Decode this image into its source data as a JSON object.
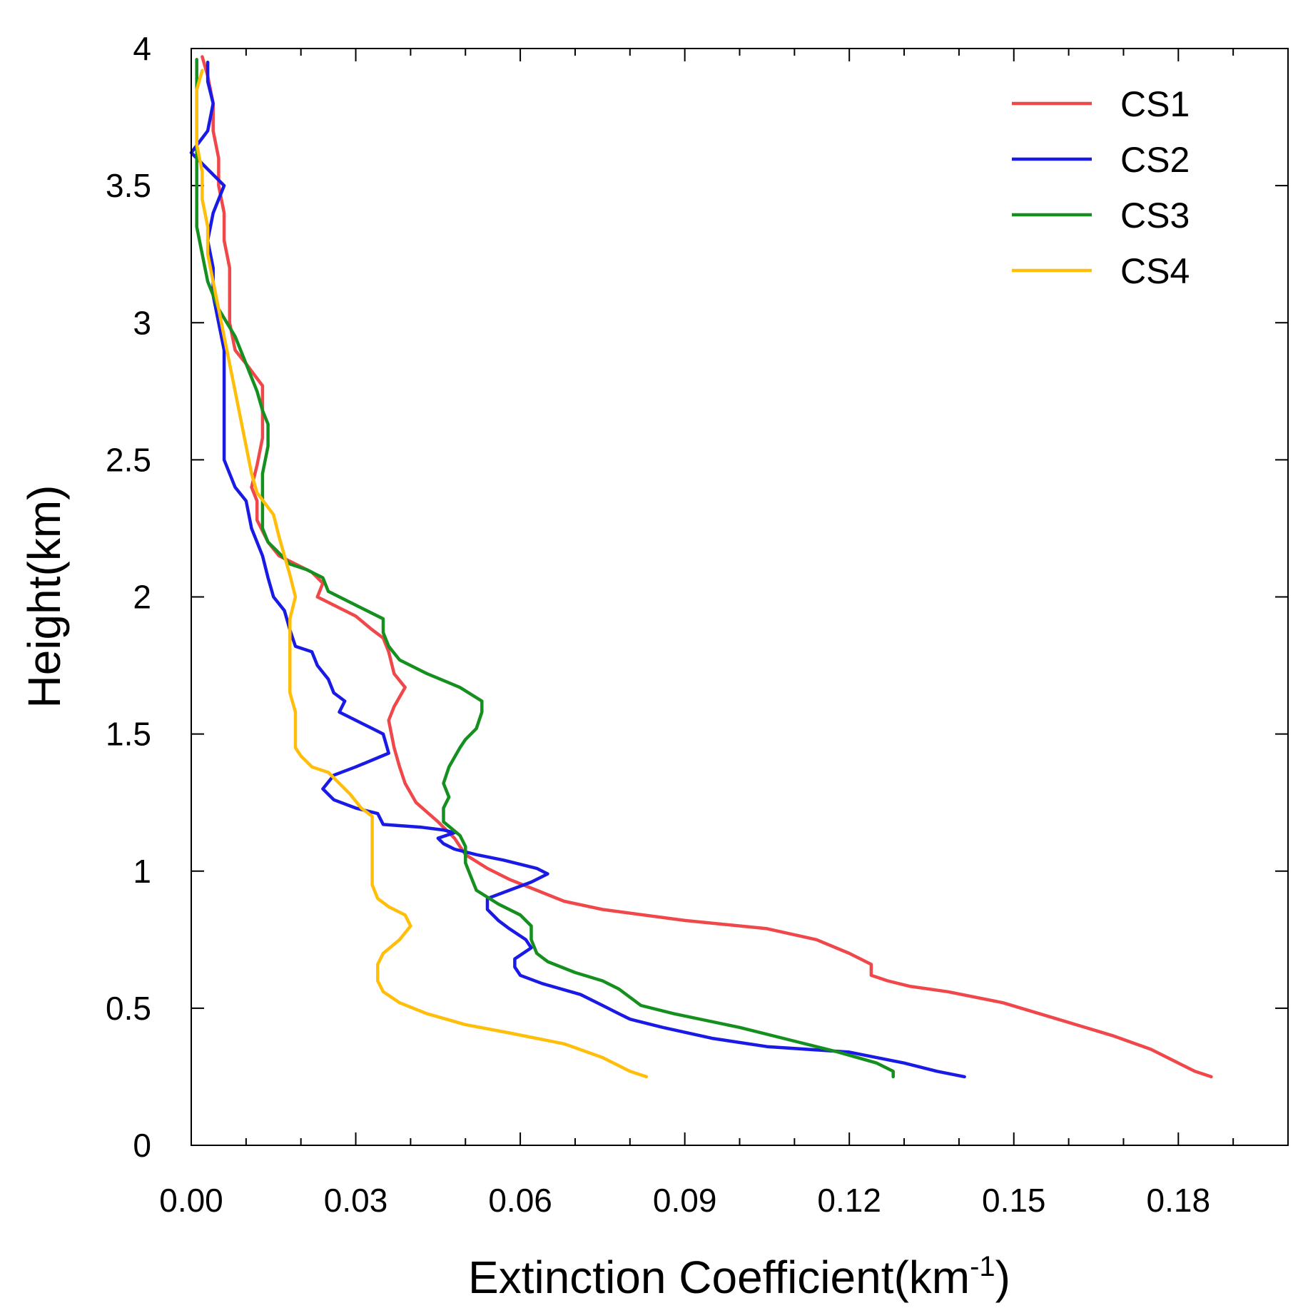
{
  "chart_data": {
    "type": "line",
    "xlabel": "Extinction Coefficient(km",
    "xlabel_superscript": "-1",
    "xlabel_suffix": ")",
    "ylabel": "Height(km)",
    "xlim": [
      0,
      0.2
    ],
    "ylim": [
      0,
      4
    ],
    "x_ticks": [
      "0.00",
      "0.03",
      "0.06",
      "0.09",
      "0.12",
      "0.15",
      "0.18"
    ],
    "y_ticks": [
      "0",
      "0.5",
      "1",
      "1.5",
      "2",
      "2.5",
      "3",
      "3.5",
      "4"
    ],
    "legend_position": "top-right",
    "series": [
      {
        "name": "CS1",
        "color": "#f0474a",
        "points": [
          [
            0.186,
            0.25
          ],
          [
            0.183,
            0.27
          ],
          [
            0.18,
            0.3
          ],
          [
            0.175,
            0.35
          ],
          [
            0.168,
            0.4
          ],
          [
            0.158,
            0.46
          ],
          [
            0.148,
            0.52
          ],
          [
            0.138,
            0.56
          ],
          [
            0.131,
            0.58
          ],
          [
            0.127,
            0.6
          ],
          [
            0.124,
            0.62
          ],
          [
            0.124,
            0.66
          ],
          [
            0.12,
            0.7
          ],
          [
            0.114,
            0.75
          ],
          [
            0.105,
            0.79
          ],
          [
            0.09,
            0.82
          ],
          [
            0.075,
            0.86
          ],
          [
            0.068,
            0.89
          ],
          [
            0.063,
            0.93
          ],
          [
            0.058,
            0.97
          ],
          [
            0.054,
            1.01
          ],
          [
            0.05,
            1.06
          ],
          [
            0.048,
            1.12
          ],
          [
            0.045,
            1.18
          ],
          [
            0.041,
            1.25
          ],
          [
            0.039,
            1.32
          ],
          [
            0.038,
            1.38
          ],
          [
            0.037,
            1.45
          ],
          [
            0.036,
            1.55
          ],
          [
            0.037,
            1.6
          ],
          [
            0.039,
            1.67
          ],
          [
            0.037,
            1.72
          ],
          [
            0.036,
            1.8
          ],
          [
            0.035,
            1.85
          ],
          [
            0.033,
            1.88
          ],
          [
            0.03,
            1.93
          ],
          [
            0.027,
            1.96
          ],
          [
            0.023,
            2.0
          ],
          [
            0.024,
            2.05
          ],
          [
            0.022,
            2.09
          ],
          [
            0.019,
            2.12
          ],
          [
            0.016,
            2.15
          ],
          [
            0.014,
            2.2
          ],
          [
            0.012,
            2.28
          ],
          [
            0.012,
            2.35
          ],
          [
            0.011,
            2.4
          ],
          [
            0.012,
            2.48
          ],
          [
            0.013,
            2.58
          ],
          [
            0.013,
            2.7
          ],
          [
            0.013,
            2.77
          ],
          [
            0.01,
            2.85
          ],
          [
            0.008,
            2.9
          ],
          [
            0.007,
            3.0
          ],
          [
            0.007,
            3.1
          ],
          [
            0.007,
            3.2
          ],
          [
            0.006,
            3.3
          ],
          [
            0.006,
            3.4
          ],
          [
            0.005,
            3.5
          ],
          [
            0.005,
            3.6
          ],
          [
            0.004,
            3.7
          ],
          [
            0.004,
            3.8
          ],
          [
            0.003,
            3.9
          ],
          [
            0.002,
            3.97
          ]
        ]
      },
      {
        "name": "CS2",
        "color": "#1a1ae6",
        "points": [
          [
            0.141,
            0.25
          ],
          [
            0.136,
            0.27
          ],
          [
            0.13,
            0.3
          ],
          [
            0.12,
            0.34
          ],
          [
            0.105,
            0.36
          ],
          [
            0.095,
            0.39
          ],
          [
            0.086,
            0.43
          ],
          [
            0.08,
            0.46
          ],
          [
            0.078,
            0.48
          ],
          [
            0.075,
            0.51
          ],
          [
            0.071,
            0.55
          ],
          [
            0.064,
            0.59
          ],
          [
            0.06,
            0.62
          ],
          [
            0.059,
            0.65
          ],
          [
            0.059,
            0.68
          ],
          [
            0.062,
            0.72
          ],
          [
            0.061,
            0.75
          ],
          [
            0.058,
            0.79
          ],
          [
            0.056,
            0.82
          ],
          [
            0.054,
            0.86
          ],
          [
            0.054,
            0.9
          ],
          [
            0.058,
            0.93
          ],
          [
            0.062,
            0.96
          ],
          [
            0.065,
            0.99
          ],
          [
            0.063,
            1.01
          ],
          [
            0.057,
            1.04
          ],
          [
            0.052,
            1.06
          ],
          [
            0.048,
            1.08
          ],
          [
            0.046,
            1.1
          ],
          [
            0.045,
            1.12
          ],
          [
            0.048,
            1.14
          ],
          [
            0.046,
            1.15
          ],
          [
            0.042,
            1.16
          ],
          [
            0.035,
            1.17
          ],
          [
            0.034,
            1.21
          ],
          [
            0.03,
            1.23
          ],
          [
            0.026,
            1.26
          ],
          [
            0.024,
            1.3
          ],
          [
            0.026,
            1.35
          ],
          [
            0.03,
            1.38
          ],
          [
            0.036,
            1.43
          ],
          [
            0.035,
            1.5
          ],
          [
            0.033,
            1.52
          ],
          [
            0.03,
            1.55
          ],
          [
            0.027,
            1.58
          ],
          [
            0.028,
            1.62
          ],
          [
            0.026,
            1.65
          ],
          [
            0.025,
            1.7
          ],
          [
            0.023,
            1.75
          ],
          [
            0.022,
            1.8
          ],
          [
            0.019,
            1.82
          ],
          [
            0.018,
            1.88
          ],
          [
            0.017,
            1.95
          ],
          [
            0.015,
            2.0
          ],
          [
            0.014,
            2.07
          ],
          [
            0.013,
            2.15
          ],
          [
            0.011,
            2.25
          ],
          [
            0.01,
            2.35
          ],
          [
            0.008,
            2.4
          ],
          [
            0.006,
            2.5
          ],
          [
            0.006,
            2.6
          ],
          [
            0.006,
            2.7
          ],
          [
            0.006,
            2.8
          ],
          [
            0.006,
            2.9
          ],
          [
            0.005,
            3.0
          ],
          [
            0.004,
            3.1
          ],
          [
            0.004,
            3.2
          ],
          [
            0.003,
            3.3
          ],
          [
            0.004,
            3.4
          ],
          [
            0.006,
            3.5
          ],
          [
            0.003,
            3.56
          ],
          [
            0.0,
            3.62
          ],
          [
            0.003,
            3.7
          ],
          [
            0.004,
            3.8
          ],
          [
            0.003,
            3.88
          ],
          [
            0.003,
            3.95
          ]
        ]
      },
      {
        "name": "CS3",
        "color": "#15901f",
        "points": [
          [
            0.128,
            0.25
          ],
          [
            0.128,
            0.27
          ],
          [
            0.125,
            0.3
          ],
          [
            0.118,
            0.34
          ],
          [
            0.11,
            0.38
          ],
          [
            0.1,
            0.43
          ],
          [
            0.088,
            0.48
          ],
          [
            0.082,
            0.51
          ],
          [
            0.08,
            0.54
          ],
          [
            0.078,
            0.57
          ],
          [
            0.075,
            0.6
          ],
          [
            0.07,
            0.63
          ],
          [
            0.065,
            0.67
          ],
          [
            0.063,
            0.7
          ],
          [
            0.062,
            0.75
          ],
          [
            0.062,
            0.8
          ],
          [
            0.06,
            0.84
          ],
          [
            0.056,
            0.88
          ],
          [
            0.052,
            0.93
          ],
          [
            0.051,
            0.98
          ],
          [
            0.05,
            1.03
          ],
          [
            0.05,
            1.09
          ],
          [
            0.049,
            1.13
          ],
          [
            0.046,
            1.18
          ],
          [
            0.046,
            1.23
          ],
          [
            0.047,
            1.27
          ],
          [
            0.046,
            1.32
          ],
          [
            0.047,
            1.38
          ],
          [
            0.049,
            1.45
          ],
          [
            0.05,
            1.48
          ],
          [
            0.052,
            1.52
          ],
          [
            0.053,
            1.58
          ],
          [
            0.053,
            1.62
          ],
          [
            0.049,
            1.67
          ],
          [
            0.043,
            1.72
          ],
          [
            0.038,
            1.77
          ],
          [
            0.036,
            1.82
          ],
          [
            0.035,
            1.87
          ],
          [
            0.035,
            1.92
          ],
          [
            0.03,
            1.97
          ],
          [
            0.025,
            2.02
          ],
          [
            0.024,
            2.07
          ],
          [
            0.021,
            2.1
          ],
          [
            0.018,
            2.12
          ],
          [
            0.016,
            2.16
          ],
          [
            0.014,
            2.2
          ],
          [
            0.013,
            2.25
          ],
          [
            0.013,
            2.35
          ],
          [
            0.013,
            2.45
          ],
          [
            0.014,
            2.55
          ],
          [
            0.014,
            2.63
          ],
          [
            0.013,
            2.68
          ],
          [
            0.012,
            2.75
          ],
          [
            0.01,
            2.85
          ],
          [
            0.008,
            2.95
          ],
          [
            0.005,
            3.05
          ],
          [
            0.003,
            3.15
          ],
          [
            0.002,
            3.25
          ],
          [
            0.001,
            3.35
          ],
          [
            0.001,
            3.45
          ],
          [
            0.001,
            3.55
          ],
          [
            0.001,
            3.65
          ],
          [
            0.001,
            3.75
          ],
          [
            0.001,
            3.85
          ],
          [
            0.001,
            3.96
          ]
        ]
      },
      {
        "name": "CS4",
        "color": "#ffbe0a",
        "points": [
          [
            0.083,
            0.25
          ],
          [
            0.08,
            0.27
          ],
          [
            0.075,
            0.32
          ],
          [
            0.068,
            0.37
          ],
          [
            0.058,
            0.41
          ],
          [
            0.05,
            0.44
          ],
          [
            0.043,
            0.48
          ],
          [
            0.038,
            0.52
          ],
          [
            0.035,
            0.56
          ],
          [
            0.034,
            0.6
          ],
          [
            0.034,
            0.66
          ],
          [
            0.035,
            0.7
          ],
          [
            0.038,
            0.75
          ],
          [
            0.04,
            0.8
          ],
          [
            0.039,
            0.84
          ],
          [
            0.036,
            0.87
          ],
          [
            0.034,
            0.9
          ],
          [
            0.033,
            0.95
          ],
          [
            0.033,
            1.0
          ],
          [
            0.033,
            1.05
          ],
          [
            0.033,
            1.1
          ],
          [
            0.033,
            1.15
          ],
          [
            0.033,
            1.2
          ],
          [
            0.031,
            1.23
          ],
          [
            0.029,
            1.28
          ],
          [
            0.027,
            1.32
          ],
          [
            0.025,
            1.36
          ],
          [
            0.022,
            1.38
          ],
          [
            0.02,
            1.42
          ],
          [
            0.019,
            1.45
          ],
          [
            0.019,
            1.52
          ],
          [
            0.019,
            1.58
          ],
          [
            0.018,
            1.65
          ],
          [
            0.018,
            1.72
          ],
          [
            0.018,
            1.8
          ],
          [
            0.018,
            1.85
          ],
          [
            0.018,
            1.92
          ],
          [
            0.019,
            2.0
          ],
          [
            0.018,
            2.08
          ],
          [
            0.017,
            2.15
          ],
          [
            0.016,
            2.22
          ],
          [
            0.015,
            2.3
          ],
          [
            0.012,
            2.38
          ],
          [
            0.011,
            2.45
          ],
          [
            0.01,
            2.55
          ],
          [
            0.009,
            2.65
          ],
          [
            0.008,
            2.75
          ],
          [
            0.007,
            2.85
          ],
          [
            0.006,
            2.95
          ],
          [
            0.005,
            3.05
          ],
          [
            0.004,
            3.15
          ],
          [
            0.003,
            3.25
          ],
          [
            0.003,
            3.35
          ],
          [
            0.002,
            3.45
          ],
          [
            0.002,
            3.55
          ],
          [
            0.001,
            3.65
          ],
          [
            0.001,
            3.75
          ],
          [
            0.001,
            3.85
          ],
          [
            0.002,
            3.92
          ]
        ]
      }
    ]
  }
}
